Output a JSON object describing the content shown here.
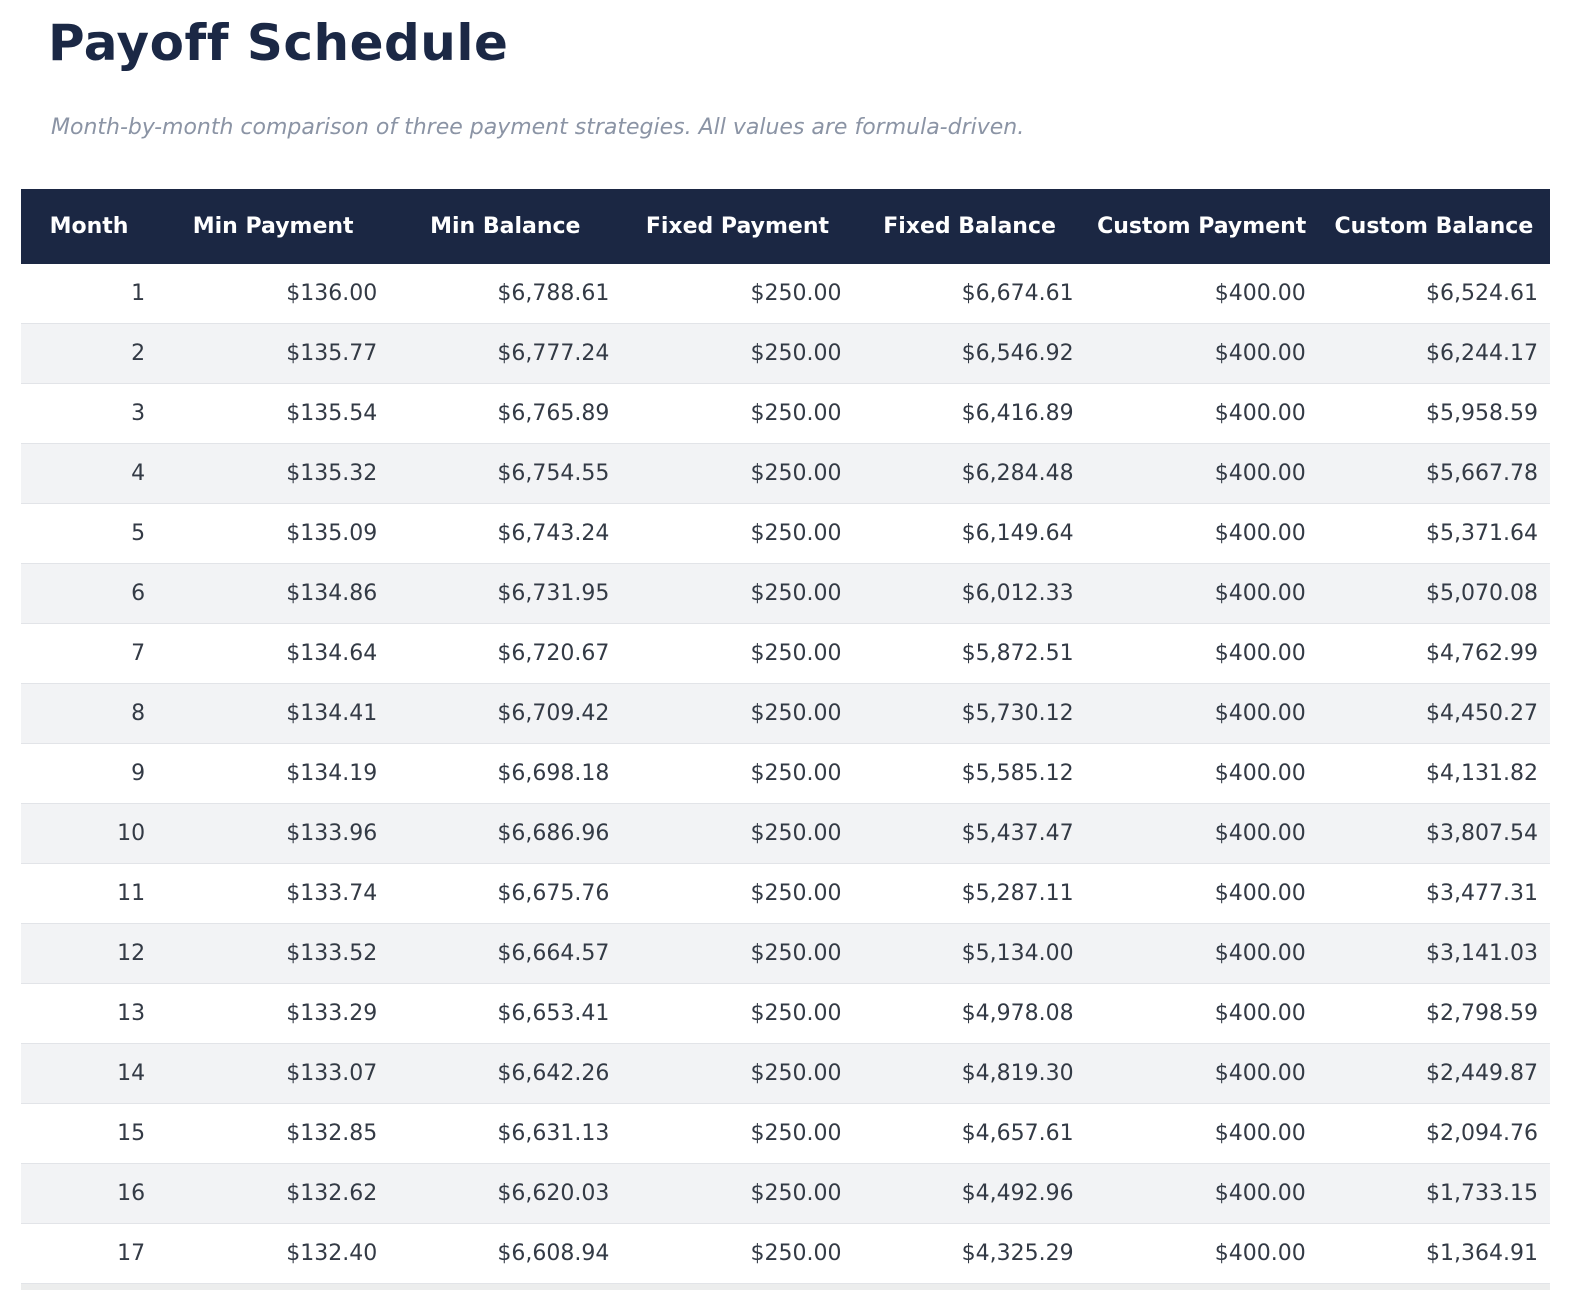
{
  "page": {
    "title": "Payoff Schedule",
    "subtitle": "Month-by-month comparison of three payment strategies. All values are formula-driven."
  },
  "colors": {
    "header_bg": "#1b2743",
    "header_text": "#ffffff",
    "title_text": "#1b2845",
    "subtitle_text": "#8b94a5",
    "row_alt_bg": "#f2f3f5",
    "row_border": "#e2e4e8",
    "cell_text": "#333a45"
  },
  "table": {
    "columns": [
      "Month",
      "Min Payment",
      "Min Balance",
      "Fixed Payment",
      "Fixed Balance",
      "Custom Payment",
      "Custom Balance"
    ],
    "rows": [
      [
        "1",
        "$136.00",
        "$6,788.61",
        "$250.00",
        "$6,674.61",
        "$400.00",
        "$6,524.61"
      ],
      [
        "2",
        "$135.77",
        "$6,777.24",
        "$250.00",
        "$6,546.92",
        "$400.00",
        "$6,244.17"
      ],
      [
        "3",
        "$135.54",
        "$6,765.89",
        "$250.00",
        "$6,416.89",
        "$400.00",
        "$5,958.59"
      ],
      [
        "4",
        "$135.32",
        "$6,754.55",
        "$250.00",
        "$6,284.48",
        "$400.00",
        "$5,667.78"
      ],
      [
        "5",
        "$135.09",
        "$6,743.24",
        "$250.00",
        "$6,149.64",
        "$400.00",
        "$5,371.64"
      ],
      [
        "6",
        "$134.86",
        "$6,731.95",
        "$250.00",
        "$6,012.33",
        "$400.00",
        "$5,070.08"
      ],
      [
        "7",
        "$134.64",
        "$6,720.67",
        "$250.00",
        "$5,872.51",
        "$400.00",
        "$4,762.99"
      ],
      [
        "8",
        "$134.41",
        "$6,709.42",
        "$250.00",
        "$5,730.12",
        "$400.00",
        "$4,450.27"
      ],
      [
        "9",
        "$134.19",
        "$6,698.18",
        "$250.00",
        "$5,585.12",
        "$400.00",
        "$4,131.82"
      ],
      [
        "10",
        "$133.96",
        "$6,686.96",
        "$250.00",
        "$5,437.47",
        "$400.00",
        "$3,807.54"
      ],
      [
        "11",
        "$133.74",
        "$6,675.76",
        "$250.00",
        "$5,287.11",
        "$400.00",
        "$3,477.31"
      ],
      [
        "12",
        "$133.52",
        "$6,664.57",
        "$250.00",
        "$5,134.00",
        "$400.00",
        "$3,141.03"
      ],
      [
        "13",
        "$133.29",
        "$6,653.41",
        "$250.00",
        "$4,978.08",
        "$400.00",
        "$2,798.59"
      ],
      [
        "14",
        "$133.07",
        "$6,642.26",
        "$250.00",
        "$4,819.30",
        "$400.00",
        "$2,449.87"
      ],
      [
        "15",
        "$132.85",
        "$6,631.13",
        "$250.00",
        "$4,657.61",
        "$400.00",
        "$2,094.76"
      ],
      [
        "16",
        "$132.62",
        "$6,620.03",
        "$250.00",
        "$4,492.96",
        "$400.00",
        "$1,733.15"
      ],
      [
        "17",
        "$132.40",
        "$6,608.94",
        "$250.00",
        "$4,325.29",
        "$400.00",
        "$1,364.91"
      ]
    ],
    "column_widths_pct": [
      8.9,
      15.1833,
      15.1833,
      15.1833,
      15.1833,
      15.1833,
      15.1833
    ]
  }
}
